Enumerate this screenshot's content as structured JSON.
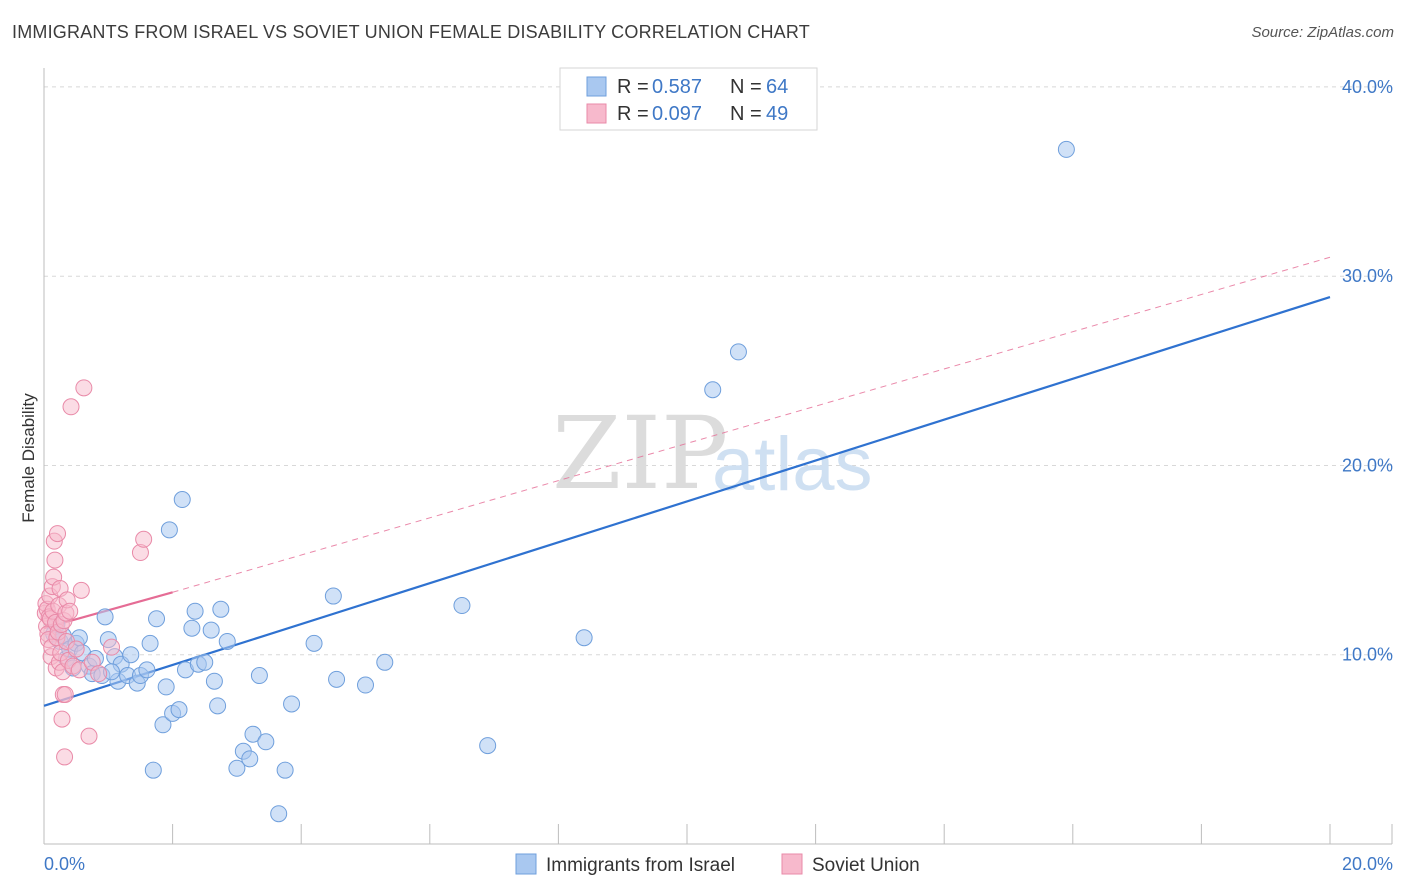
{
  "title": "IMMIGRANTS FROM ISRAEL VS SOVIET UNION FEMALE DISABILITY CORRELATION CHART",
  "source": "Source: ZipAtlas.com",
  "watermark": {
    "zip": "ZIP",
    "atlas": "atlas"
  },
  "colors": {
    "israel_fill": "#a9c8f0",
    "israel_stroke": "#6f9fdc",
    "israel_line": "#2f72d0",
    "soviet_fill": "#f7b9cc",
    "soviet_stroke": "#e98aa8",
    "soviet_line": "#e56c95",
    "tick_text": "#3f78c6",
    "grid": "#d8d8d8"
  },
  "legend": {
    "rows": [
      {
        "r_label": "R =",
        "r_value": "0.587",
        "n_label": "N =",
        "n_value": "64"
      },
      {
        "r_label": "R =",
        "r_value": "0.097",
        "n_label": "N =",
        "n_value": "49"
      }
    ]
  },
  "bottom_legend": [
    "Immigrants from Israel",
    "Soviet Union"
  ],
  "chart_data": {
    "type": "scatter",
    "title": "IMMIGRANTS FROM ISRAEL VS SOVIET UNION FEMALE DISABILITY CORRELATION CHART",
    "xlabel": "",
    "ylabel": "Female Disability",
    "xlim": [
      0,
      20
    ],
    "ylim": [
      0,
      41
    ],
    "x_tick_labels": [
      "0.0%",
      "20.0%"
    ],
    "y_ticks": [
      10,
      20,
      30,
      40
    ],
    "y_tick_labels": [
      "10.0%",
      "20.0%",
      "30.0%",
      "40.0%"
    ],
    "grid": true,
    "series": [
      {
        "name": "Immigrants from Israel",
        "r": 0.587,
        "n": 64,
        "trend": {
          "x": [
            0,
            20
          ],
          "y": [
            7.3,
            28.9
          ],
          "style": "solid"
        },
        "points": [
          [
            0.15,
            11.1
          ],
          [
            0.2,
            11.6
          ],
          [
            0.25,
            10.7
          ],
          [
            0.3,
            11.0
          ],
          [
            0.35,
            9.8
          ],
          [
            0.4,
            10.3
          ],
          [
            0.5,
            10.6
          ],
          [
            0.55,
            10.9
          ],
          [
            0.6,
            10.1
          ],
          [
            0.7,
            9.4
          ],
          [
            0.75,
            9.0
          ],
          [
            0.8,
            9.8
          ],
          [
            0.9,
            8.9
          ],
          [
            0.95,
            12.0
          ],
          [
            1.0,
            10.8
          ],
          [
            1.1,
            9.9
          ],
          [
            1.15,
            8.6
          ],
          [
            1.2,
            9.5
          ],
          [
            1.3,
            8.9
          ],
          [
            1.35,
            10.0
          ],
          [
            1.45,
            8.5
          ],
          [
            1.5,
            8.9
          ],
          [
            1.6,
            9.2
          ],
          [
            1.65,
            10.6
          ],
          [
            1.7,
            3.9
          ],
          [
            1.75,
            11.9
          ],
          [
            1.85,
            6.3
          ],
          [
            1.9,
            8.3
          ],
          [
            1.95,
            16.6
          ],
          [
            2.0,
            6.9
          ],
          [
            2.1,
            7.1
          ],
          [
            2.15,
            18.2
          ],
          [
            2.2,
            9.2
          ],
          [
            2.3,
            11.4
          ],
          [
            2.35,
            12.3
          ],
          [
            2.4,
            9.5
          ],
          [
            2.6,
            11.3
          ],
          [
            2.65,
            8.6
          ],
          [
            2.7,
            7.3
          ],
          [
            2.75,
            12.4
          ],
          [
            2.85,
            10.7
          ],
          [
            3.0,
            4.0
          ],
          [
            3.1,
            4.9
          ],
          [
            3.2,
            4.5
          ],
          [
            3.25,
            5.8
          ],
          [
            3.35,
            8.9
          ],
          [
            3.45,
            5.4
          ],
          [
            3.65,
            1.6
          ],
          [
            3.75,
            3.9
          ],
          [
            3.85,
            7.4
          ],
          [
            4.2,
            10.6
          ],
          [
            4.5,
            13.1
          ],
          [
            4.55,
            8.7
          ],
          [
            5.0,
            8.4
          ],
          [
            5.3,
            9.6
          ],
          [
            6.5,
            12.6
          ],
          [
            6.9,
            5.2
          ],
          [
            8.4,
            10.9
          ],
          [
            10.4,
            24.0
          ],
          [
            10.8,
            26.0
          ],
          [
            15.9,
            36.7
          ],
          [
            0.45,
            9.3
          ],
          [
            1.05,
            9.1
          ],
          [
            2.5,
            9.6
          ]
        ]
      },
      {
        "name": "Soviet Union",
        "r": 0.097,
        "n": 49,
        "trend": {
          "x": [
            0,
            2.0
          ],
          "y": [
            11.4,
            13.3
          ],
          "style": "solid",
          "extended_x": [
            2.0,
            20
          ],
          "extended_y": [
            13.3,
            31.0
          ],
          "extended_style": "dashed"
        },
        "points": [
          [
            0.02,
            12.2
          ],
          [
            0.03,
            12.7
          ],
          [
            0.04,
            11.5
          ],
          [
            0.05,
            12.4
          ],
          [
            0.06,
            11.1
          ],
          [
            0.07,
            10.8
          ],
          [
            0.08,
            12.0
          ],
          [
            0.09,
            13.1
          ],
          [
            0.1,
            11.9
          ],
          [
            0.11,
            9.9
          ],
          [
            0.12,
            10.4
          ],
          [
            0.13,
            13.6
          ],
          [
            0.14,
            12.3
          ],
          [
            0.15,
            14.1
          ],
          [
            0.16,
            16.0
          ],
          [
            0.17,
            15.0
          ],
          [
            0.18,
            11.7
          ],
          [
            0.19,
            9.3
          ],
          [
            0.2,
            10.9
          ],
          [
            0.21,
            16.4
          ],
          [
            0.22,
            11.2
          ],
          [
            0.23,
            12.6
          ],
          [
            0.24,
            9.6
          ],
          [
            0.25,
            13.5
          ],
          [
            0.26,
            10.1
          ],
          [
            0.27,
            11.6
          ],
          [
            0.28,
            6.6
          ],
          [
            0.29,
            9.1
          ],
          [
            0.3,
            7.9
          ],
          [
            0.31,
            11.8
          ],
          [
            0.32,
            4.6
          ],
          [
            0.33,
            7.9
          ],
          [
            0.34,
            12.2
          ],
          [
            0.35,
            10.7
          ],
          [
            0.36,
            12.9
          ],
          [
            0.38,
            9.7
          ],
          [
            0.4,
            12.3
          ],
          [
            0.42,
            23.1
          ],
          [
            0.45,
            9.4
          ],
          [
            0.5,
            10.3
          ],
          [
            0.55,
            9.2
          ],
          [
            0.58,
            13.4
          ],
          [
            0.62,
            24.1
          ],
          [
            0.7,
            5.7
          ],
          [
            0.75,
            9.6
          ],
          [
            0.85,
            9.0
          ],
          [
            1.05,
            10.4
          ],
          [
            1.5,
            15.4
          ],
          [
            1.55,
            16.1
          ]
        ]
      }
    ]
  }
}
